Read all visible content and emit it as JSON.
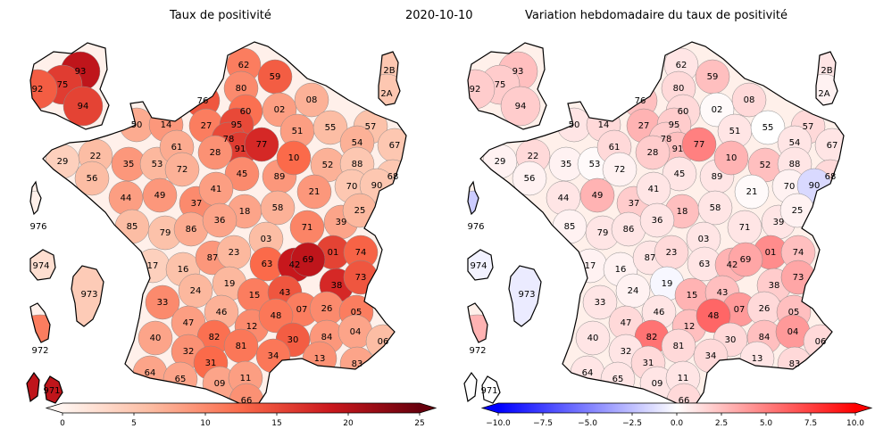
{
  "titles": {
    "left": "Taux de positivité",
    "date": "2020-10-10",
    "right": "Variation hebdomadaire du taux de positivité"
  },
  "colorbars": {
    "left": {
      "scale": "Reds",
      "min": 0,
      "max": 25,
      "ticks": [
        "0",
        "5",
        "10",
        "15",
        "20",
        "25"
      ]
    },
    "right": {
      "scale": "bwr",
      "min": -10,
      "max": 10,
      "ticks": [
        "−10.0",
        "−7.5",
        "−5.0",
        "−2.5",
        "0.0",
        "2.5",
        "5.0",
        "7.5",
        "10.0"
      ]
    }
  },
  "departments": [
    {
      "code": "93",
      "positivity": 19.5,
      "variation": 2.5
    },
    {
      "code": "92",
      "positivity": 13.5,
      "variation": 2.0
    },
    {
      "code": "75",
      "positivity": 16.0,
      "variation": 2.0
    },
    {
      "code": "94",
      "positivity": 15.5,
      "variation": 2.0
    },
    {
      "code": "62",
      "positivity": 11.0,
      "variation": 1.0
    },
    {
      "code": "59",
      "positivity": 13.5,
      "variation": 2.5
    },
    {
      "code": "80",
      "positivity": 10.0,
      "variation": 1.5
    },
    {
      "code": "76",
      "positivity": 14.0,
      "variation": 2.5
    },
    {
      "code": "60",
      "positivity": 12.0,
      "variation": 1.5
    },
    {
      "code": "02",
      "positivity": 8.5,
      "variation": 0.2
    },
    {
      "code": "08",
      "positivity": 7.0,
      "variation": 1.5
    },
    {
      "code": "2B",
      "positivity": 5.0,
      "variation": 1.0
    },
    {
      "code": "2A",
      "positivity": 5.0,
      "variation": 0.5
    },
    {
      "code": "50",
      "positivity": 7.5,
      "variation": 1.0
    },
    {
      "code": "14",
      "positivity": 9.0,
      "variation": 1.5
    },
    {
      "code": "27",
      "positivity": 11.0,
      "variation": 3.0
    },
    {
      "code": "95",
      "positivity": 15.0,
      "variation": 2.0
    },
    {
      "code": "78",
      "positivity": 15.0,
      "variation": 2.0
    },
    {
      "code": "91",
      "positivity": 16.0,
      "variation": 2.5
    },
    {
      "code": "77",
      "positivity": 17.5,
      "variation": 5.0
    },
    {
      "code": "51",
      "positivity": 8.5,
      "variation": 1.0
    },
    {
      "code": "55",
      "positivity": 6.0,
      "variation": 0.0
    },
    {
      "code": "57",
      "positivity": 5.5,
      "variation": 1.5
    },
    {
      "code": "54",
      "positivity": 7.0,
      "variation": 1.0
    },
    {
      "code": "67",
      "positivity": 5.0,
      "variation": 1.0
    },
    {
      "code": "29",
      "positivity": 4.0,
      "variation": 0.5
    },
    {
      "code": "22",
      "positivity": 6.0,
      "variation": 1.5
    },
    {
      "code": "35",
      "positivity": 9.0,
      "variation": 0.5
    },
    {
      "code": "53",
      "positivity": 6.5,
      "variation": 0.2
    },
    {
      "code": "61",
      "positivity": 7.5,
      "variation": 1.5
    },
    {
      "code": "72",
      "positivity": 7.0,
      "variation": 0.5
    },
    {
      "code": "28",
      "positivity": 9.5,
      "variation": 2.0
    },
    {
      "code": "45",
      "positivity": 10.0,
      "variation": 1.0
    },
    {
      "code": "89",
      "positivity": 9.0,
      "variation": 1.0
    },
    {
      "code": "10",
      "positivity": 12.5,
      "variation": 3.0
    },
    {
      "code": "52",
      "positivity": 7.0,
      "variation": 2.5
    },
    {
      "code": "88",
      "positivity": 5.0,
      "variation": 1.0
    },
    {
      "code": "70",
      "positivity": 5.0,
      "variation": 0.5
    },
    {
      "code": "68",
      "positivity": 5.0,
      "variation": 1.5
    },
    {
      "code": "90",
      "positivity": 5.0,
      "variation": -1.5
    },
    {
      "code": "56",
      "positivity": 6.0,
      "variation": 0.5
    },
    {
      "code": "44",
      "positivity": 8.5,
      "variation": 1.0
    },
    {
      "code": "49",
      "positivity": 9.0,
      "variation": 3.0
    },
    {
      "code": "37",
      "positivity": 10.0,
      "variation": 2.0
    },
    {
      "code": "41",
      "positivity": 8.5,
      "variation": 1.0
    },
    {
      "code": "18",
      "positivity": 8.0,
      "variation": 2.5
    },
    {
      "code": "58",
      "positivity": 7.0,
      "variation": 1.0
    },
    {
      "code": "21",
      "positivity": 9.0,
      "variation": 0.2
    },
    {
      "code": "39",
      "positivity": 8.0,
      "variation": 1.0
    },
    {
      "code": "25",
      "positivity": 6.5,
      "variation": 0.5
    },
    {
      "code": "85",
      "positivity": 6.0,
      "variation": 0.5
    },
    {
      "code": "79",
      "positivity": 5.5,
      "variation": 1.0
    },
    {
      "code": "86",
      "positivity": 7.5,
      "variation": 1.0
    },
    {
      "code": "36",
      "positivity": 8.0,
      "variation": 1.0
    },
    {
      "code": "71",
      "positivity": 10.5,
      "variation": 1.0
    },
    {
      "code": "03",
      "positivity": 6.0,
      "variation": 1.0
    },
    {
      "code": "01",
      "positivity": 15.5,
      "variation": 4.5
    },
    {
      "code": "74",
      "positivity": 13.0,
      "variation": 2.5
    },
    {
      "code": "17",
      "positivity": 4.0,
      "variation": 0.5
    },
    {
      "code": "16",
      "positivity": 5.5,
      "variation": 0.5
    },
    {
      "code": "87",
      "positivity": 9.0,
      "variation": 1.0
    },
    {
      "code": "23",
      "positivity": 6.5,
      "variation": 1.5
    },
    {
      "code": "63",
      "positivity": 12.5,
      "variation": 1.0
    },
    {
      "code": "42",
      "positivity": 19.0,
      "variation": 3.0
    },
    {
      "code": "69",
      "positivity": 19.5,
      "variation": 3.5
    },
    {
      "code": "38",
      "positivity": 17.5,
      "variation": 2.0
    },
    {
      "code": "73",
      "positivity": 14.0,
      "variation": 3.5
    },
    {
      "code": "19",
      "positivity": 6.5,
      "variation": -0.3
    },
    {
      "code": "24",
      "positivity": 6.5,
      "variation": 0.5
    },
    {
      "code": "33",
      "positivity": 10.0,
      "variation": 1.0
    },
    {
      "code": "15",
      "positivity": 11.0,
      "variation": 3.0
    },
    {
      "code": "43",
      "positivity": 14.0,
      "variation": 2.5
    },
    {
      "code": "07",
      "positivity": 11.0,
      "variation": 4.0
    },
    {
      "code": "26",
      "positivity": 10.0,
      "variation": 1.5
    },
    {
      "code": "05",
      "positivity": 11.0,
      "variation": 2.5
    },
    {
      "code": "46",
      "positivity": 7.0,
      "variation": 1.0
    },
    {
      "code": "47",
      "positivity": 8.5,
      "variation": 1.5
    },
    {
      "code": "82",
      "positivity": 12.0,
      "variation": 5.5
    },
    {
      "code": "12",
      "positivity": 10.0,
      "variation": 2.5
    },
    {
      "code": "48",
      "positivity": 11.5,
      "variation": 6.0
    },
    {
      "code": "30",
      "positivity": 13.5,
      "variation": 1.5
    },
    {
      "code": "84",
      "positivity": 9.0,
      "variation": 2.5
    },
    {
      "code": "04",
      "positivity": 8.0,
      "variation": 4.0
    },
    {
      "code": "06",
      "positivity": 6.0,
      "variation": 1.5
    },
    {
      "code": "40",
      "positivity": 8.0,
      "variation": 1.0
    },
    {
      "code": "32",
      "positivity": 9.5,
      "variation": 1.0
    },
    {
      "code": "81",
      "positivity": 11.5,
      "variation": 1.5
    },
    {
      "code": "31",
      "positivity": 12.5,
      "variation": 1.5
    },
    {
      "code": "34",
      "positivity": 11.5,
      "variation": 1.5
    },
    {
      "code": "13",
      "positivity": 9.5,
      "variation": 1.0
    },
    {
      "code": "83",
      "positivity": 8.0,
      "variation": 1.5
    },
    {
      "code": "64",
      "positivity": 8.0,
      "variation": 1.0
    },
    {
      "code": "65",
      "positivity": 8.0,
      "variation": 1.0
    },
    {
      "code": "09",
      "positivity": 8.0,
      "variation": 1.0
    },
    {
      "code": "11",
      "positivity": 8.5,
      "variation": 1.0
    },
    {
      "code": "66",
      "positivity": 9.5,
      "variation": 1.5
    },
    {
      "code": "976",
      "positivity": 0.5,
      "variation": -2.0
    },
    {
      "code": "974",
      "positivity": 2.5,
      "variation": -0.5
    },
    {
      "code": "973",
      "positivity": 4.5,
      "variation": -0.8
    },
    {
      "code": "972",
      "positivity": 11.0,
      "variation": 3.0
    },
    {
      "code": "971",
      "positivity": 19.5,
      "variation": 0.0
    }
  ]
}
